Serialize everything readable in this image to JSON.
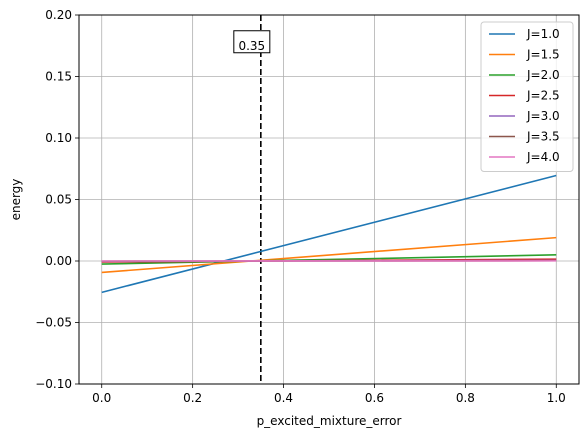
{
  "chart_data": {
    "type": "line",
    "xlabel": "p_excited_mixture_error",
    "ylabel": "energy",
    "xlim": [
      -0.05,
      1.05
    ],
    "ylim": [
      -0.1,
      0.2
    ],
    "xticks": [
      0.0,
      0.2,
      0.4,
      0.6,
      0.8,
      1.0
    ],
    "xtick_labels": [
      "0.0",
      "0.2",
      "0.4",
      "0.6",
      "0.8",
      "1.0"
    ],
    "yticks": [
      -0.1,
      -0.05,
      0.0,
      0.05,
      0.1,
      0.15,
      0.2
    ],
    "ytick_labels": [
      "−0.10",
      "−0.05",
      "0.00",
      "0.05",
      "0.10",
      "0.15",
      "0.20"
    ],
    "grid": true,
    "legend_position": "top-right",
    "vline": {
      "x": 0.35,
      "style": "dashed",
      "color": "#000000"
    },
    "annotation": {
      "text": "0.35",
      "x": 0.35,
      "y": 0.175
    },
    "series": [
      {
        "name": "J=1.0",
        "color": "#1f77b4",
        "x": [
          0.0,
          1.0
        ],
        "y": [
          -0.0255,
          0.0695
        ]
      },
      {
        "name": "J=1.5",
        "color": "#ff7f0e",
        "x": [
          0.0,
          1.0
        ],
        "y": [
          -0.0093,
          0.019
        ]
      },
      {
        "name": "J=2.0",
        "color": "#2ca02c",
        "x": [
          0.0,
          1.0
        ],
        "y": [
          -0.0025,
          0.005
        ]
      },
      {
        "name": "J=2.5",
        "color": "#d62728",
        "x": [
          0.0,
          1.0
        ],
        "y": [
          -0.0008,
          0.0015
        ]
      },
      {
        "name": "J=3.0",
        "color": "#9467bd",
        "x": [
          0.0,
          1.0
        ],
        "y": [
          -0.0003,
          0.0005
        ]
      },
      {
        "name": "J=3.5",
        "color": "#8c564b",
        "x": [
          0.0,
          1.0
        ],
        "y": [
          -0.0001,
          0.0002
        ]
      },
      {
        "name": "J=4.0",
        "color": "#e377c2",
        "x": [
          0.0,
          1.0
        ],
        "y": [
          0.0,
          0.0001
        ]
      }
    ]
  }
}
